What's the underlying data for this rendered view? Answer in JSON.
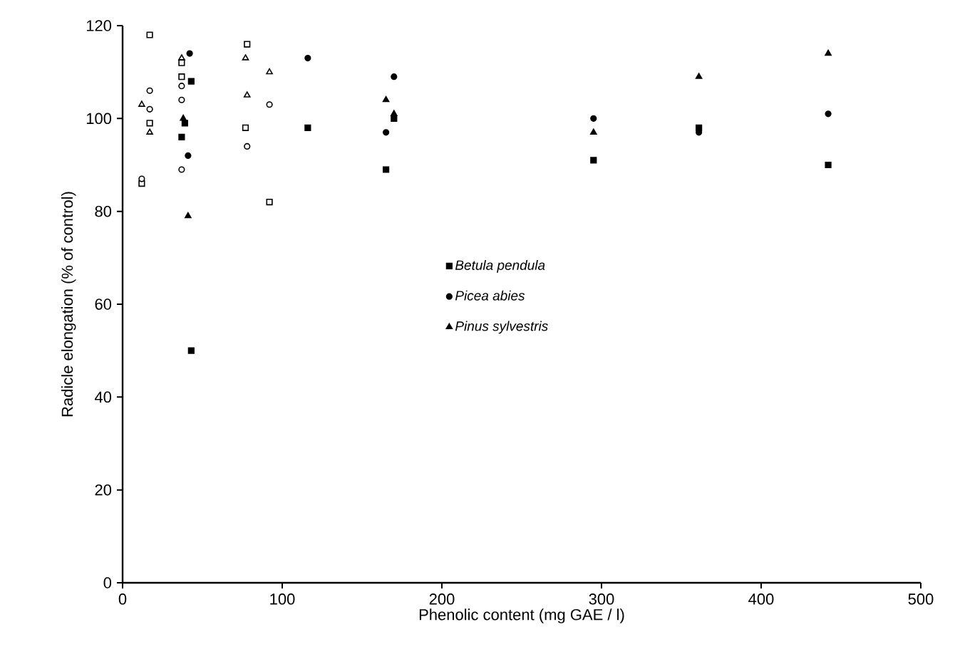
{
  "chart_data": {
    "type": "scatter",
    "xlabel": "Phenolic content (mg GAE / l)",
    "ylabel": "Radicle elongation (% of control)",
    "xlim": [
      0,
      500
    ],
    "xticks": [
      0,
      100,
      200,
      300,
      400,
      500
    ],
    "ylim": [
      0,
      120
    ],
    "yticks": [
      0,
      20,
      40,
      60,
      80,
      100,
      120
    ],
    "grid": false,
    "legend": "center",
    "series": [
      {
        "name": "Betula pendula",
        "color": "#000000",
        "marker": "square",
        "x": [
          43,
          37,
          39,
          43,
          116,
          170,
          165,
          295,
          361,
          442
        ],
        "values": [
          108,
          96,
          99,
          50,
          98,
          100,
          89,
          91,
          98,
          90
        ]
      },
      {
        "name": "Picea abies",
        "color": "#000000",
        "marker": "circle",
        "x": [
          42,
          41,
          116,
          170,
          165,
          295,
          361,
          442
        ],
        "values": [
          114,
          92,
          113,
          109,
          97,
          100,
          97,
          101
        ]
      },
      {
        "name": "Pinus sylvestris",
        "color": "#000000",
        "marker": "triangle",
        "x": [
          41,
          38,
          165,
          170,
          295,
          361,
          442
        ],
        "values": [
          79,
          100,
          104,
          101,
          97,
          109,
          114
        ]
      },
      {
        "color": "#ffffff",
        "marker": "square",
        "x": [
          17,
          17,
          78,
          77,
          92,
          12,
          37,
          37
        ],
        "values": [
          118,
          99,
          116,
          98,
          82,
          86,
          109,
          112
        ]
      },
      {
        "color": "#ffffff",
        "marker": "circle",
        "x": [
          17,
          17,
          12,
          37,
          37,
          92,
          78,
          37
        ],
        "values": [
          106,
          102,
          87,
          89,
          104,
          103,
          94,
          107
        ]
      },
      {
        "color": "#ffffff",
        "marker": "triangle",
        "x": [
          12,
          17,
          37,
          77,
          78,
          92
        ],
        "values": [
          103,
          97,
          113,
          113,
          105,
          110
        ]
      }
    ]
  }
}
